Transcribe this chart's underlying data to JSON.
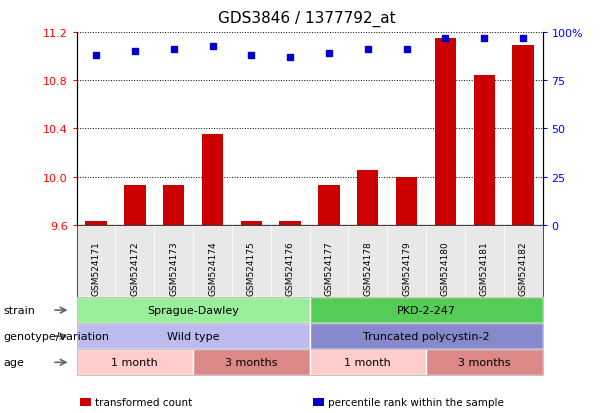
{
  "title": "GDS3846 / 1377792_at",
  "samples": [
    "GSM524171",
    "GSM524172",
    "GSM524173",
    "GSM524174",
    "GSM524175",
    "GSM524176",
    "GSM524177",
    "GSM524178",
    "GSM524179",
    "GSM524180",
    "GSM524181",
    "GSM524182"
  ],
  "bar_values": [
    9.63,
    9.93,
    9.93,
    10.35,
    9.63,
    9.63,
    9.93,
    10.05,
    10.0,
    11.15,
    10.84,
    11.09
  ],
  "dot_values": [
    88,
    90,
    91,
    93,
    88,
    87,
    89,
    91,
    91,
    97,
    97,
    97
  ],
  "ylim_left": [
    9.6,
    11.2
  ],
  "ylim_right": [
    0,
    100
  ],
  "yticks_left": [
    9.6,
    10.0,
    10.4,
    10.8,
    11.2
  ],
  "yticks_right": [
    0,
    25,
    50,
    75,
    100
  ],
  "ytick_labels_right": [
    "0",
    "25",
    "50",
    "75",
    "100%"
  ],
  "bar_color": "#cc0000",
  "dot_color": "#0000cc",
  "bar_bottom": 9.6,
  "annotation_rows": [
    {
      "label": "strain",
      "groups": [
        {
          "text": "Sprague-Dawley",
          "start": 0,
          "end": 5,
          "color": "#99ee99"
        },
        {
          "text": "PKD-2-247",
          "start": 6,
          "end": 11,
          "color": "#55cc55"
        }
      ]
    },
    {
      "label": "genotype/variation",
      "groups": [
        {
          "text": "Wild type",
          "start": 0,
          "end": 5,
          "color": "#bbbbee"
        },
        {
          "text": "Truncated polycystin-2",
          "start": 6,
          "end": 11,
          "color": "#8888cc"
        }
      ]
    },
    {
      "label": "age",
      "groups": [
        {
          "text": "1 month",
          "start": 0,
          "end": 2,
          "color": "#ffcccc"
        },
        {
          "text": "3 months",
          "start": 3,
          "end": 5,
          "color": "#dd8888"
        },
        {
          "text": "1 month",
          "start": 6,
          "end": 8,
          "color": "#ffcccc"
        },
        {
          "text": "3 months",
          "start": 9,
          "end": 11,
          "color": "#dd8888"
        }
      ]
    }
  ],
  "legend_items": [
    {
      "color": "#cc0000",
      "label": "transformed count"
    },
    {
      "color": "#0000cc",
      "label": "percentile rank within the sample"
    }
  ],
  "background_color": "white",
  "title_fontsize": 11,
  "tick_fontsize": 8,
  "label_fontsize": 7.5,
  "annot_fontsize": 8,
  "row_label_fontsize": 8
}
